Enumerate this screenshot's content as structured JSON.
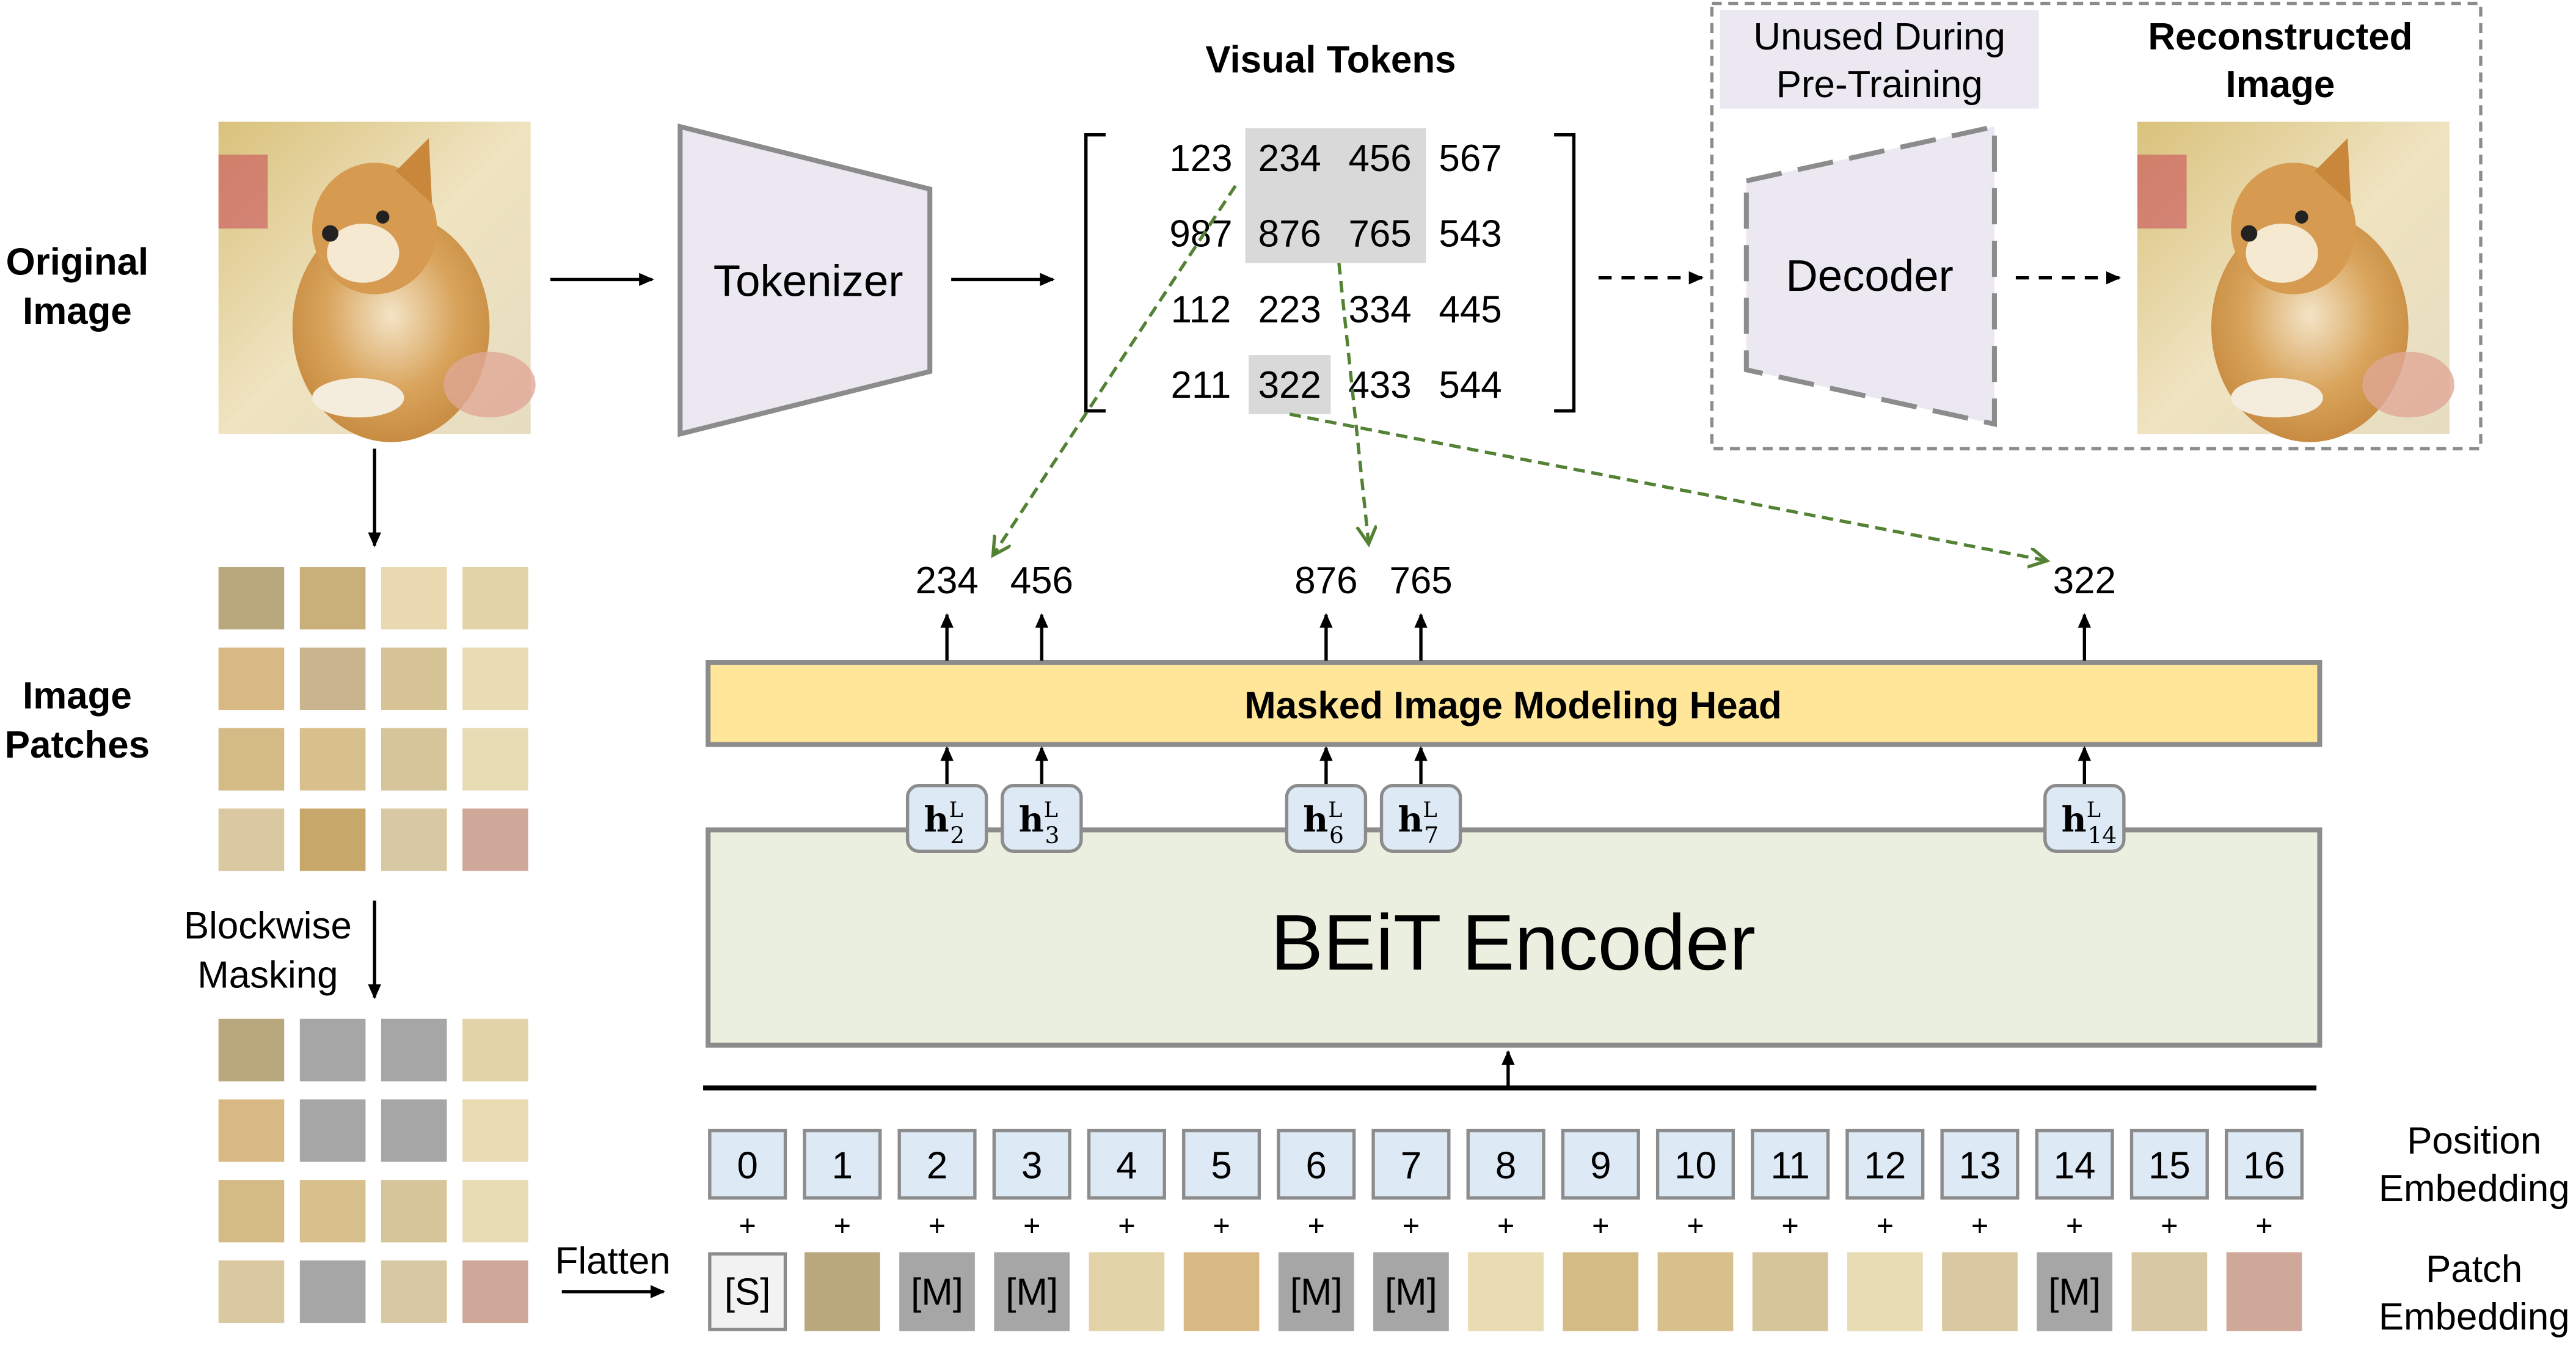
{
  "labels": {
    "original_image": [
      "Original",
      "Image"
    ],
    "image_patches": [
      "Image",
      "Patches"
    ],
    "blockwise_masking": [
      "Blockwise",
      "Masking"
    ],
    "flatten": "Flatten",
    "tokenizer": "Tokenizer",
    "visual_tokens": "Visual Tokens",
    "unused": [
      "Unused During",
      "Pre-Training"
    ],
    "reconstructed": [
      "Reconstructed",
      "Image"
    ],
    "decoder": "Decoder",
    "mim_head": "Masked Image Modeling Head",
    "encoder": "BEiT Encoder",
    "position_embedding": [
      "Position",
      "Embedding"
    ],
    "patch_embedding": [
      "Patch",
      "Embedding"
    ]
  },
  "visual_tokens": [
    [
      "123",
      "234",
      "456",
      "567"
    ],
    [
      "987",
      "876",
      "765",
      "543"
    ],
    [
      "112",
      "223",
      "334",
      "445"
    ],
    [
      "211",
      "322",
      "433",
      "544"
    ]
  ],
  "predicted_tokens": [
    {
      "position": 2,
      "token": "234",
      "hidden": "h",
      "sup": "L",
      "sub": "2"
    },
    {
      "position": 3,
      "token": "456",
      "hidden": "h",
      "sup": "L",
      "sub": "3"
    },
    {
      "position": 6,
      "token": "876",
      "hidden": "h",
      "sup": "L",
      "sub": "6"
    },
    {
      "position": 7,
      "token": "765",
      "hidden": "h",
      "sup": "L",
      "sub": "7"
    },
    {
      "position": 14,
      "token": "322",
      "hidden": "h",
      "sup": "L",
      "sub": "14"
    }
  ],
  "positions": [
    "0",
    "1",
    "2",
    "3",
    "4",
    "5",
    "6",
    "7",
    "8",
    "9",
    "10",
    "11",
    "12",
    "13",
    "14",
    "15",
    "16"
  ],
  "plus_sign": "+",
  "special_token": "[S]",
  "mask_token": "[M]",
  "patch_colors": [
    "#d8c57a",
    "#b9a77d",
    "#c9b07a",
    "#ead9b0",
    "#e2d3a8",
    "#d8b984",
    "#c8b58d",
    "#d6c497",
    "#e9dbb2",
    "#d4bb85",
    "#d8c08d",
    "#d6c49b",
    "#e8dcb5",
    "#d9c8a0",
    "#c8a86a",
    "#d8c9a4",
    "#d0a89a"
  ],
  "masked_patches": [
    2,
    3,
    6,
    7,
    14
  ],
  "colors": {
    "tokenizer_fill": "#ebe8f2",
    "head_fill": "#ffe699",
    "encoder_fill": "#ebefdf",
    "embedding_fill": "#dde9f5",
    "mask_fill": "#a6a6a6",
    "highlight": "#d9d9d9",
    "arrow_green": "#548235",
    "border_gray": "#8c8c8c"
  }
}
